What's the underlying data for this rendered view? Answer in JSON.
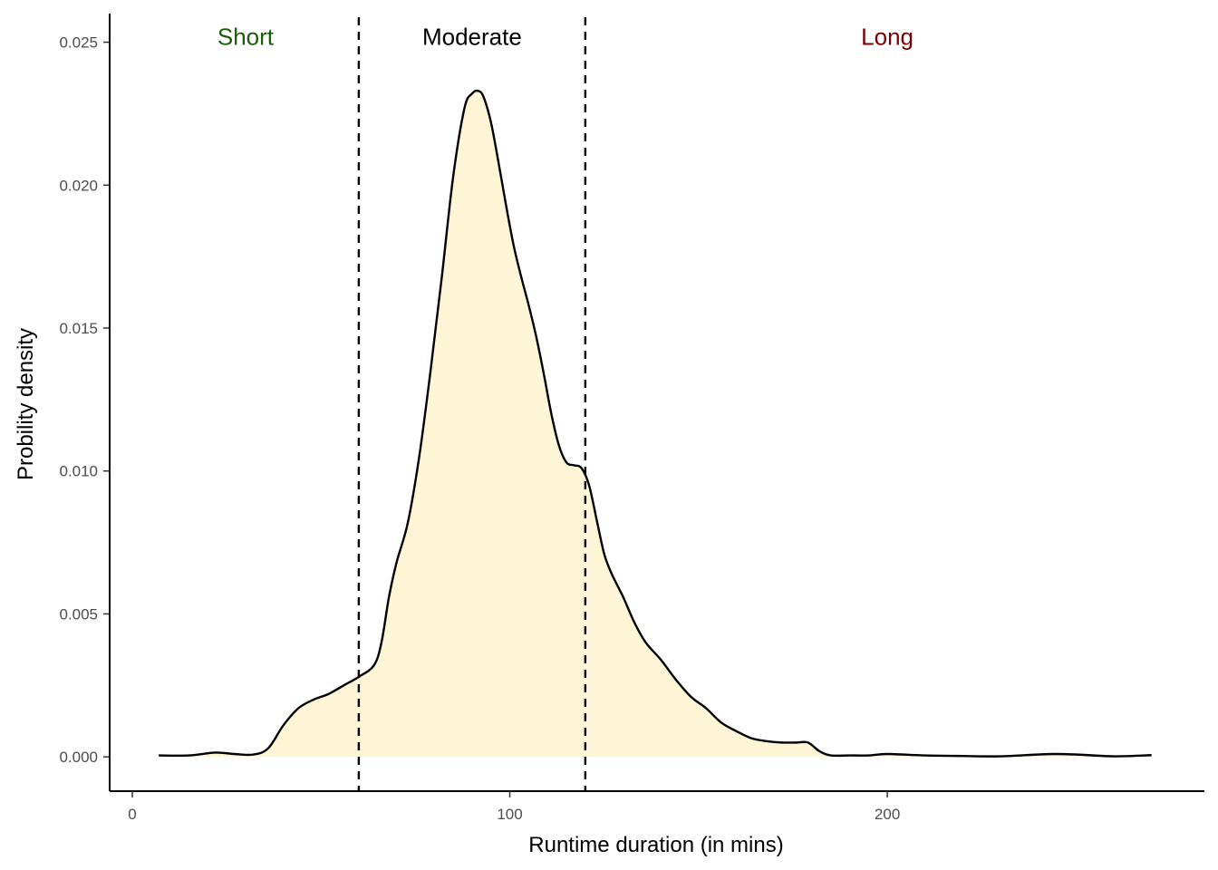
{
  "chart_data": {
    "type": "area",
    "title": "",
    "xlabel": "Runtime duration (in mins)",
    "ylabel": "Probility density",
    "xlim": [
      -6,
      284
    ],
    "ylim": [
      -0.0012,
      0.026
    ],
    "x_ticks": [
      0,
      100,
      200
    ],
    "y_ticks": [
      0.0,
      0.005,
      0.01,
      0.015,
      0.02,
      0.025
    ],
    "y_tick_labels": [
      "0.000",
      "0.005",
      "0.010",
      "0.015",
      "0.020",
      "0.025"
    ],
    "grid": false,
    "legend": "none",
    "fill_color": "#fdf5d6",
    "line_color": "#000000",
    "series": [
      {
        "x": [
          7,
          15,
          22,
          27,
          32,
          36,
          40,
          44,
          48,
          52,
          56,
          60,
          64,
          66,
          68,
          70,
          73,
          76,
          79,
          82,
          85,
          88,
          90,
          91.5,
          93,
          95,
          97,
          99,
          101,
          103,
          105,
          107,
          109,
          111,
          113,
          115,
          117,
          119,
          121,
          123,
          125,
          127,
          130,
          133,
          136,
          140,
          144,
          148,
          152,
          156,
          160,
          164,
          168,
          172,
          176,
          179,
          182,
          185,
          190,
          195,
          200,
          210,
          220,
          230,
          245,
          260,
          270
        ],
        "y": [
          5e-05,
          5e-05,
          0.00015,
          0.0001,
          8e-05,
          0.0003,
          0.0011,
          0.0017,
          0.002,
          0.0022,
          0.0025,
          0.0028,
          0.0032,
          0.004,
          0.0056,
          0.0068,
          0.0082,
          0.0105,
          0.0135,
          0.0168,
          0.0203,
          0.0227,
          0.0232,
          0.0233,
          0.0231,
          0.0222,
          0.0208,
          0.0193,
          0.0179,
          0.0168,
          0.0158,
          0.0147,
          0.0134,
          0.012,
          0.0109,
          0.0103,
          0.0102,
          0.0101,
          0.0095,
          0.0083,
          0.0071,
          0.0064,
          0.0056,
          0.0047,
          0.004,
          0.0034,
          0.0027,
          0.0021,
          0.0017,
          0.0012,
          0.0009,
          0.00065,
          0.00055,
          0.0005,
          0.0005,
          0.0005,
          0.0002,
          5e-05,
          5e-05,
          5e-05,
          0.0001,
          5e-05,
          3e-05,
          2e-05,
          0.0001,
          2e-05,
          6e-05
        ]
      }
    ],
    "vlines": [
      60,
      120
    ],
    "annotations": [
      {
        "text": "Short",
        "x": 30,
        "y": 0.0249,
        "color": "#1a5e0a"
      },
      {
        "text": "Moderate",
        "x": 90,
        "y": 0.0249,
        "color": "#000000"
      },
      {
        "text": "Long",
        "x": 200,
        "y": 0.0249,
        "color": "#7a0000"
      }
    ]
  }
}
